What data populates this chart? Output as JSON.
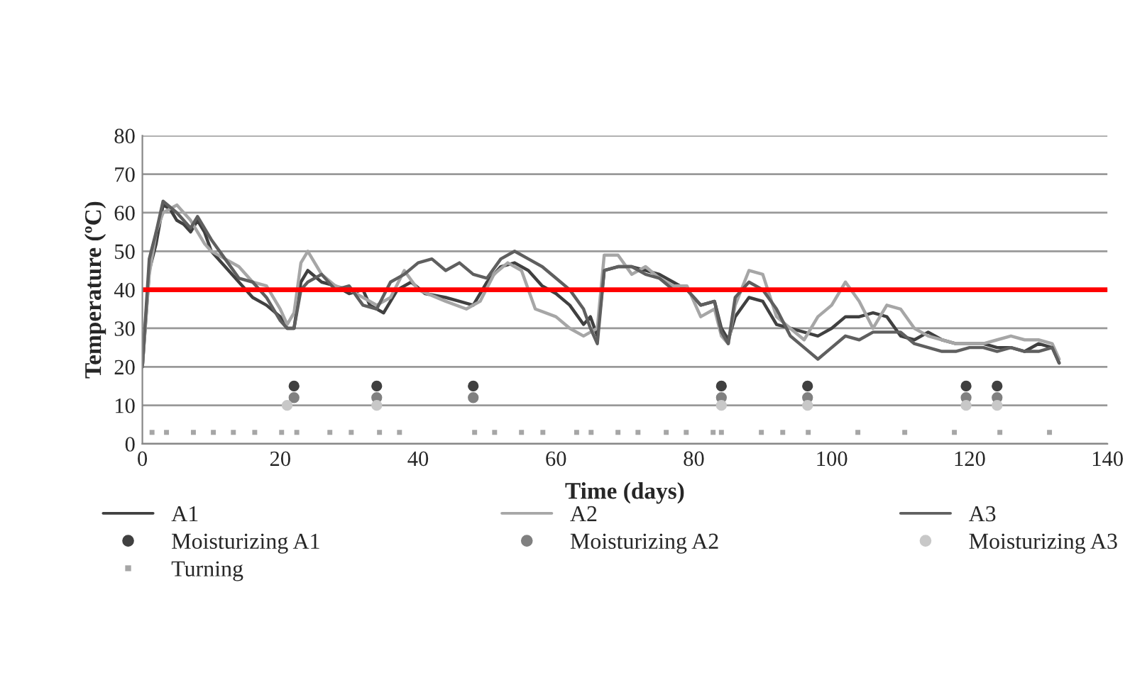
{
  "chart_data": {
    "type": "line",
    "xlabel": "Time (days)",
    "ylabel": "Temperature (ºC)",
    "xlim": [
      0,
      140
    ],
    "ylim": [
      0,
      80
    ],
    "xticks": [
      0,
      20,
      40,
      60,
      80,
      100,
      120,
      140
    ],
    "yticks": [
      0,
      10,
      20,
      30,
      40,
      50,
      60,
      70,
      80
    ],
    "grid": "y",
    "legend": "bottom",
    "marker": "none",
    "line_style": "solid",
    "series": [
      {
        "name": "A1",
        "color": "#404040",
        "x": [
          0,
          1,
          2,
          3,
          4,
          5,
          6,
          7,
          8,
          9,
          10,
          12,
          14,
          16,
          18,
          20,
          21,
          22,
          23,
          24,
          26,
          28,
          30,
          32,
          33,
          35,
          37,
          39,
          41,
          44,
          46,
          48,
          50,
          52,
          54,
          56,
          58,
          60,
          62,
          64,
          65,
          66,
          67,
          69,
          71,
          73,
          75,
          77,
          79,
          81,
          83,
          84,
          85,
          86,
          88,
          90,
          92,
          94,
          96,
          98,
          100,
          102,
          104,
          106,
          108,
          110,
          112,
          114,
          116,
          118,
          120,
          122,
          124,
          126,
          128,
          130,
          132,
          133
        ],
        "values": [
          20,
          45,
          52,
          62,
          61,
          58,
          57,
          55,
          58,
          55,
          50,
          46,
          42,
          38,
          36,
          33,
          30,
          30,
          42,
          45,
          42,
          41,
          39,
          40,
          36,
          34,
          40,
          42,
          39,
          38,
          37,
          36,
          42,
          46,
          47,
          45,
          41,
          39,
          36,
          31,
          33,
          28,
          45,
          46,
          46,
          45,
          44,
          42,
          40,
          36,
          37,
          30,
          27,
          33,
          38,
          37,
          31,
          30,
          29,
          28,
          30,
          33,
          33,
          34,
          33,
          28,
          27,
          29,
          27,
          26,
          26,
          26,
          25,
          25,
          24,
          26,
          25,
          21
        ]
      },
      {
        "name": "A2",
        "color": "#a6a6a6",
        "x": [
          0,
          1,
          2,
          3,
          5,
          7,
          9,
          10,
          12,
          14,
          16,
          18,
          20,
          21,
          22,
          23,
          24,
          26,
          28,
          30,
          32,
          34,
          36,
          38,
          40,
          44,
          47,
          49,
          51,
          53,
          55,
          57,
          60,
          62,
          64,
          65,
          66,
          67,
          69,
          71,
          73,
          75,
          77,
          79,
          81,
          83,
          84,
          85,
          86,
          88,
          90,
          92,
          94,
          96,
          98,
          100,
          102,
          104,
          106,
          108,
          110,
          112,
          114,
          116,
          118,
          120,
          122,
          124,
          126,
          128,
          130,
          132,
          133
        ],
        "values": [
          20,
          44,
          55,
          60,
          62,
          58,
          52,
          50,
          48,
          46,
          42,
          41,
          35,
          31,
          34,
          47,
          50,
          44,
          41,
          40,
          38,
          36,
          38,
          45,
          40,
          37,
          35,
          37,
          44,
          47,
          45,
          35,
          33,
          30,
          28,
          29,
          30,
          49,
          49,
          44,
          46,
          43,
          41,
          41,
          33,
          35,
          28,
          26,
          36,
          45,
          44,
          33,
          30,
          27,
          33,
          36,
          42,
          37,
          30,
          36,
          35,
          30,
          28,
          27,
          26,
          26,
          26,
          27,
          28,
          27,
          27,
          26,
          22
        ]
      },
      {
        "name": "A3",
        "color": "#5f5f5f",
        "x": [
          0,
          1,
          2,
          3,
          5,
          7,
          8,
          10,
          12,
          14,
          16,
          18,
          20,
          21,
          22,
          23,
          24,
          26,
          28,
          30,
          32,
          34,
          36,
          38,
          40,
          42,
          44,
          46,
          48,
          50,
          52,
          54,
          56,
          58,
          60,
          62,
          64,
          65,
          66,
          67,
          69,
          71,
          73,
          75,
          77,
          79,
          81,
          83,
          84,
          85,
          86,
          88,
          90,
          92,
          94,
          96,
          98,
          100,
          102,
          104,
          106,
          108,
          110,
          112,
          114,
          116,
          118,
          120,
          122,
          124,
          126,
          128,
          130,
          132,
          133
        ],
        "values": [
          20,
          48,
          55,
          63,
          60,
          56,
          59,
          53,
          48,
          43,
          42,
          38,
          32,
          30,
          30,
          40,
          42,
          44,
          40,
          41,
          36,
          35,
          42,
          44,
          47,
          48,
          45,
          47,
          44,
          43,
          48,
          50,
          48,
          46,
          43,
          40,
          35,
          30,
          26,
          45,
          46,
          46,
          44,
          43,
          40,
          40,
          36,
          37,
          29,
          26,
          38,
          42,
          40,
          35,
          28,
          25,
          22,
          25,
          28,
          27,
          29,
          29,
          29,
          26,
          25,
          24,
          24,
          25,
          25,
          24,
          25,
          24,
          24,
          25,
          21
        ]
      },
      {
        "name": "Moisturizing A1",
        "type": "scatter",
        "marker": "circle",
        "color": "#404040",
        "x": [
          22,
          34,
          48,
          84,
          96.5,
          119.5,
          124
        ],
        "values": [
          15,
          15,
          15,
          15,
          15,
          15,
          15
        ]
      },
      {
        "name": "Moisturizing A2",
        "type": "scatter",
        "marker": "circle",
        "color": "#808080",
        "x": [
          22,
          34,
          48,
          84,
          96.5,
          119.5,
          124
        ],
        "values": [
          12,
          12,
          12,
          12,
          12,
          12,
          12
        ]
      },
      {
        "name": "Moisturizing A3",
        "type": "scatter",
        "marker": "circle",
        "color": "#c8c8c8",
        "x": [
          21,
          34,
          84,
          96.5,
          119.5,
          124
        ],
        "values": [
          10,
          10,
          10,
          10,
          10,
          10
        ]
      },
      {
        "name": "Turning",
        "type": "scatter",
        "marker": "square",
        "color": "#a6a6a6",
        "x": [
          1.4,
          3.5,
          7.4,
          10.3,
          13.2,
          16.3,
          20.2,
          22.4,
          27.2,
          30.3,
          34.4,
          37.3,
          48.2,
          51.1,
          55,
          58.1,
          63,
          65.1,
          69,
          71.9,
          76,
          78.9,
          82.8,
          84,
          89.8,
          92.9,
          96.6,
          103.8,
          110.6,
          117.8,
          124.4,
          131.6
        ],
        "values": [
          3,
          3,
          3,
          3,
          3,
          3,
          3,
          3,
          3,
          3,
          3,
          3,
          3,
          3,
          3,
          3,
          3,
          3,
          3,
          3,
          3,
          3,
          3,
          3,
          3,
          3,
          3,
          3,
          3,
          3,
          3,
          3
        ]
      }
    ],
    "ref_lines": [
      {
        "axis": "y",
        "value": 40,
        "color": "#ff0000",
        "line_style": "solid"
      }
    ]
  }
}
